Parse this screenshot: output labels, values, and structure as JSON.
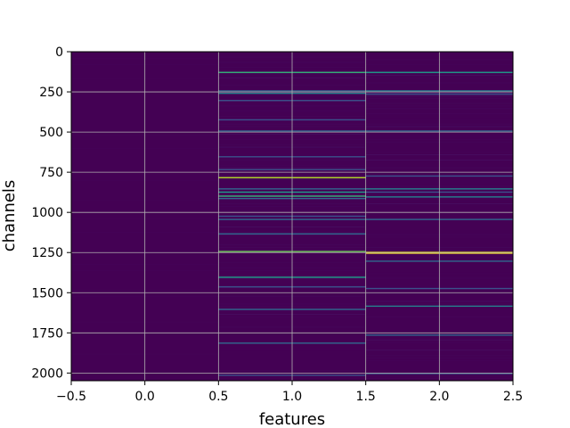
{
  "chart_data": {
    "type": "heatmap",
    "title": "",
    "xlabel": "features",
    "ylabel": "channels",
    "xlim": [
      -0.5,
      2.5
    ],
    "ylim": [
      2048,
      0
    ],
    "y_inverted": true,
    "grid": true,
    "colormap": "viridis",
    "background_color": "#440154",
    "n_columns": 3,
    "n_rows": 2048,
    "x_ticks": [
      -0.5,
      0.0,
      0.5,
      1.0,
      1.5,
      2.0,
      2.5
    ],
    "x_tick_labels": [
      "−0.5",
      "0.0",
      "0.5",
      "1.0",
      "1.5",
      "2.0",
      "2.5"
    ],
    "y_ticks": [
      0,
      250,
      500,
      750,
      1000,
      1250,
      1500,
      1750,
      2000
    ],
    "y_tick_labels": [
      "0",
      "250",
      "500",
      "750",
      "1000",
      "1250",
      "1500",
      "1750",
      "2000"
    ],
    "highlighted_rows": [
      {
        "column": 1,
        "row": 125,
        "color": "#35b779"
      },
      {
        "column": 1,
        "row": 240,
        "color": "#31688e"
      },
      {
        "column": 1,
        "row": 255,
        "color": "#26828e"
      },
      {
        "column": 1,
        "row": 300,
        "color": "#3b528b"
      },
      {
        "column": 1,
        "row": 420,
        "color": "#3b528b"
      },
      {
        "column": 1,
        "row": 490,
        "color": "#31688e"
      },
      {
        "column": 1,
        "row": 650,
        "color": "#3b528b"
      },
      {
        "column": 1,
        "row": 730,
        "color": "#3b528b"
      },
      {
        "column": 1,
        "row": 780,
        "color": "#b5de2b"
      },
      {
        "column": 1,
        "row": 850,
        "color": "#31688e"
      },
      {
        "column": 1,
        "row": 870,
        "color": "#1f9e89"
      },
      {
        "column": 1,
        "row": 895,
        "color": "#35b779"
      },
      {
        "column": 1,
        "row": 910,
        "color": "#31688e"
      },
      {
        "column": 1,
        "row": 1020,
        "color": "#3b528b"
      },
      {
        "column": 1,
        "row": 1040,
        "color": "#31688e"
      },
      {
        "column": 1,
        "row": 1130,
        "color": "#31688e"
      },
      {
        "column": 1,
        "row": 1240,
        "color": "#6ece58"
      },
      {
        "column": 1,
        "row": 1400,
        "color": "#1f9e89"
      },
      {
        "column": 1,
        "row": 1460,
        "color": "#3b528b"
      },
      {
        "column": 1,
        "row": 1600,
        "color": "#31688e"
      },
      {
        "column": 1,
        "row": 1810,
        "color": "#31688e"
      },
      {
        "column": 1,
        "row": 2010,
        "color": "#3b528b"
      },
      {
        "column": 2,
        "row": 125,
        "color": "#1f9e89"
      },
      {
        "column": 2,
        "row": 240,
        "color": "#26828e"
      },
      {
        "column": 2,
        "row": 260,
        "color": "#3b528b"
      },
      {
        "column": 2,
        "row": 490,
        "color": "#31688e"
      },
      {
        "column": 2,
        "row": 770,
        "color": "#3b528b"
      },
      {
        "column": 2,
        "row": 850,
        "color": "#26828e"
      },
      {
        "column": 2,
        "row": 870,
        "color": "#3b528b"
      },
      {
        "column": 2,
        "row": 900,
        "color": "#26828e"
      },
      {
        "column": 2,
        "row": 1040,
        "color": "#31688e"
      },
      {
        "column": 2,
        "row": 1245,
        "color": "#dde318"
      },
      {
        "column": 2,
        "row": 1250,
        "color": "#fde725"
      },
      {
        "column": 2,
        "row": 1300,
        "color": "#31688e"
      },
      {
        "column": 2,
        "row": 1470,
        "color": "#3b528b"
      },
      {
        "column": 2,
        "row": 1580,
        "color": "#26828e"
      },
      {
        "column": 2,
        "row": 1760,
        "color": "#31688e"
      },
      {
        "column": 2,
        "row": 2000,
        "color": "#3b528b"
      }
    ]
  }
}
